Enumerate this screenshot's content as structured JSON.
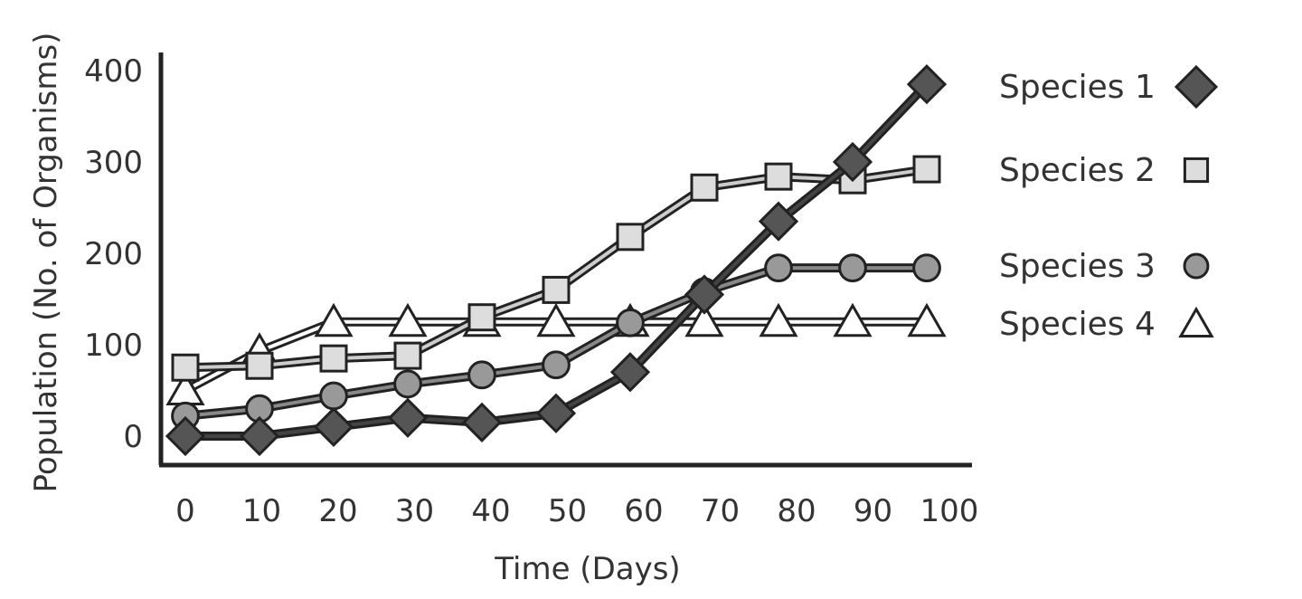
{
  "chart_data": {
    "type": "line",
    "title": "",
    "xlabel": "Time (Days)",
    "ylabel": "Population (No. of Organisms)",
    "x": [
      0,
      10,
      20,
      30,
      40,
      50,
      60,
      70,
      80,
      90,
      100
    ],
    "x_ticks": [
      "0",
      "10",
      "20",
      "30",
      "40",
      "50",
      "60",
      "70",
      "80",
      "90",
      "100"
    ],
    "y_ticks": [
      "0",
      "100",
      "200",
      "300",
      "400"
    ],
    "xlim": [
      0,
      100
    ],
    "ylim": [
      -30,
      420
    ],
    "grid": false,
    "legend_position": "right",
    "series": [
      {
        "name": "Species 1",
        "marker": "diamond",
        "fill": "#555555",
        "line": "#444444",
        "values": [
          0,
          0,
          10,
          20,
          15,
          25,
          70,
          155,
          235,
          300,
          385
        ]
      },
      {
        "name": "Species 2",
        "marker": "square",
        "fill": "#dddddd",
        "line": "#cccccc",
        "values": [
          75,
          77,
          85,
          88,
          130,
          160,
          218,
          272,
          284,
          280,
          292
        ]
      },
      {
        "name": "Species 3",
        "marker": "circle",
        "fill": "#999999",
        "line": "#888888",
        "values": [
          22,
          30,
          44,
          57,
          67,
          78,
          124,
          158,
          184,
          184,
          184
        ]
      },
      {
        "name": "Species 4",
        "marker": "triangle",
        "fill": "#ffffff",
        "line": "#ffffff",
        "values": [
          50,
          93,
          125,
          125,
          125,
          125,
          125,
          125,
          125,
          125,
          125
        ]
      }
    ]
  }
}
